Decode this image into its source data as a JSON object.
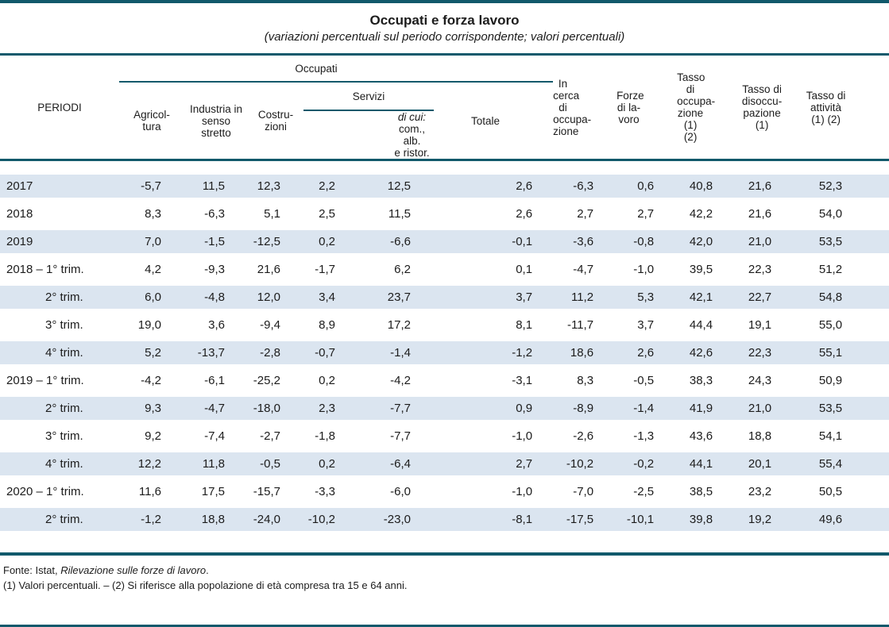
{
  "page": {
    "title": "Occupati e forza lavoro",
    "subtitle": "(variazioni percentuali sul periodo corrispondente; valori percentuali)"
  },
  "colors": {
    "rule_teal": "#11596B",
    "row_stripe": "#DBE5F0",
    "text": "#1C1C1C"
  },
  "table": {
    "header": {
      "periodi": "PERIODI",
      "occupati_group": "Occupati",
      "agricoltura": "Agricol-\ntura",
      "industria": "Industria in\nsenso\nstretto",
      "costruzioni": "Costru-\nzioni",
      "servizi_group": "Servizi",
      "servizi_dicui_em": "di cui:",
      "servizi_dicui_rest": "com., alb.\ne ristor.",
      "totale": "Totale",
      "in_cerca": "In cerca di\noccupa-\nzione",
      "forze": "Forze di la-\nvoro",
      "tasso_occupazione": "Tasso di\noccupa-\nzione\n(1) (2)",
      "tasso_disoccupazione": "Tasso di\ndisoccu-\npazione (1)",
      "tasso_attivita": "Tasso di\nattività\n(1) (2)"
    },
    "rows": [
      {
        "label": "2017",
        "indent": false,
        "values": [
          "-5,7",
          "11,5",
          "12,3",
          "2,2",
          "12,5",
          "2,6",
          "-6,3",
          "0,6",
          "40,8",
          "21,6",
          "52,3"
        ]
      },
      {
        "label": "2018",
        "indent": false,
        "values": [
          "8,3",
          "-6,3",
          "5,1",
          "2,5",
          "11,5",
          "2,6",
          "2,7",
          "2,7",
          "42,2",
          "21,6",
          "54,0"
        ]
      },
      {
        "label": "2019",
        "indent": false,
        "values": [
          "7,0",
          "-1,5",
          "-12,5",
          "0,2",
          "-6,6",
          "-0,1",
          "-3,6",
          "-0,8",
          "42,0",
          "21,0",
          "53,5"
        ]
      },
      {
        "label": "2018 – 1° trim.",
        "indent": false,
        "values": [
          "4,2",
          "-9,3",
          "21,6",
          "-1,7",
          "6,2",
          "0,1",
          "-4,7",
          "-1,0",
          "39,5",
          "22,3",
          "51,2"
        ]
      },
      {
        "label": "2° trim.",
        "indent": true,
        "values": [
          "6,0",
          "-4,8",
          "12,0",
          "3,4",
          "23,7",
          "3,7",
          "11,2",
          "5,3",
          "42,1",
          "22,7",
          "54,8"
        ]
      },
      {
        "label": "3° trim.",
        "indent": true,
        "values": [
          "19,0",
          "3,6",
          "-9,4",
          "8,9",
          "17,2",
          "8,1",
          "-11,7",
          "3,7",
          "44,4",
          "19,1",
          "55,0"
        ]
      },
      {
        "label": "4° trim.",
        "indent": true,
        "values": [
          "5,2",
          "-13,7",
          "-2,8",
          "-0,7",
          "-1,4",
          "-1,2",
          "18,6",
          "2,6",
          "42,6",
          "22,3",
          "55,1"
        ]
      },
      {
        "label": "2019 – 1° trim.",
        "indent": false,
        "values": [
          "-4,2",
          "-6,1",
          "-25,2",
          "0,2",
          "-4,2",
          "-3,1",
          "8,3",
          "-0,5",
          "38,3",
          "24,3",
          "50,9"
        ]
      },
      {
        "label": "2° trim.",
        "indent": true,
        "values": [
          "9,3",
          "-4,7",
          "-18,0",
          "2,3",
          "-7,7",
          "0,9",
          "-8,9",
          "-1,4",
          "41,9",
          "21,0",
          "53,5"
        ]
      },
      {
        "label": "3° trim.",
        "indent": true,
        "values": [
          "9,2",
          "-7,4",
          "-2,7",
          "-1,8",
          "-7,7",
          "-1,0",
          "-2,6",
          "-1,3",
          "43,6",
          "18,8",
          "54,1"
        ]
      },
      {
        "label": "4° trim.",
        "indent": true,
        "values": [
          "12,2",
          "11,8",
          "-0,5",
          "0,2",
          "-6,4",
          "2,7",
          "-10,2",
          "-0,2",
          "44,1",
          "20,1",
          "55,4"
        ]
      },
      {
        "label": "2020 – 1° trim.",
        "indent": false,
        "values": [
          "11,6",
          "17,5",
          "-15,7",
          "-3,3",
          "-6,0",
          "-1,0",
          "-7,0",
          "-2,5",
          "38,5",
          "23,2",
          "50,5"
        ]
      },
      {
        "label": "2° trim.",
        "indent": true,
        "values": [
          "-1,2",
          "18,8",
          "-24,0",
          "-10,2",
          "-23,0",
          "-8,1",
          "-17,5",
          "-10,1",
          "39,8",
          "19,2",
          "49,6"
        ]
      }
    ]
  },
  "footer": {
    "source_prefix": "Fonte: Istat, ",
    "source_title": "Rilevazione sulle forze di lavoro",
    "source_suffix": ".",
    "note": "(1) Valori percentuali. – (2) Si riferisce alla popolazione di età compresa tra 15 e 64 anni."
  }
}
